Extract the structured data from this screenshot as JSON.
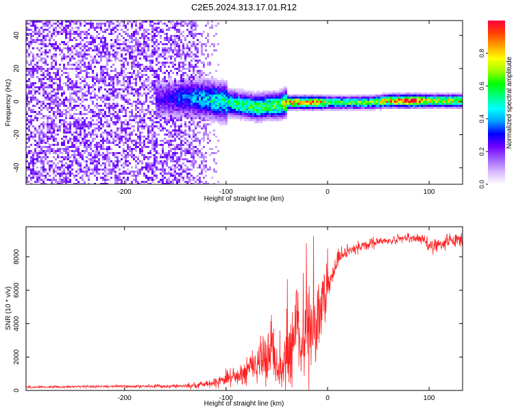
{
  "title": "C2E5.2024.313.17.01.R12",
  "chart_data": [
    {
      "type": "heatmap",
      "xlabel": "Height of straight line (km)",
      "ylabel": "Frequency (Hz)",
      "xlim": [
        -297,
        133
      ],
      "ylim": [
        -50,
        49
      ],
      "xticks": [
        -200,
        -100,
        0,
        100
      ],
      "xtick_labels": [
        "-200",
        "-100",
        "0",
        "100"
      ],
      "yticks": [
        -40,
        -20,
        0,
        20,
        40
      ],
      "ytick_labels": [
        "-40",
        "-20",
        "0",
        "20",
        "40"
      ],
      "colorbar": {
        "label": "Normalized spectral amplitude",
        "range": [
          0,
          1
        ],
        "ticks": [
          0.0,
          0.2,
          0.4,
          0.6,
          0.8
        ],
        "tick_labels": [
          "0.0",
          "0.2",
          "0.4",
          "0.6",
          "0.8"
        ],
        "colors": [
          "#ffffff",
          "#d8b8ff",
          "#a060ff",
          "#7000ff",
          "#0000ff",
          "#00a0ff",
          "#00ffff",
          "#00ff80",
          "#00ff00",
          "#a0ff00",
          "#ffff00",
          "#ffa000",
          "#ff4000",
          "#ff0040"
        ]
      },
      "ridge": {
        "x": [
          -160,
          -140,
          -120,
          -100,
          -80,
          -70,
          -60,
          -50,
          -40,
          -30,
          -20,
          -10,
          0,
          20,
          40,
          60,
          80,
          100,
          120,
          133
        ],
        "y": [
          2,
          3,
          2,
          0,
          -2,
          -3,
          -2,
          -2,
          0,
          0,
          0,
          0,
          0,
          0,
          0,
          1,
          1,
          1,
          1,
          1
        ],
        "amplitude": [
          0.25,
          0.35,
          0.45,
          0.5,
          0.55,
          0.6,
          0.6,
          0.6,
          0.8,
          0.85,
          0.85,
          0.9,
          0.6,
          0.6,
          0.6,
          0.8,
          0.95,
          0.7,
          0.75,
          0.7
        ]
      },
      "background_noise_xlim": [
        -297,
        -105
      ]
    },
    {
      "type": "line",
      "xlabel": "Height of straight line (km)",
      "ylabel": "SNR (10 * v/v)",
      "xlim": [
        -297,
        133
      ],
      "ylim": [
        0,
        9800
      ],
      "xticks": [
        -200,
        -100,
        0,
        100
      ],
      "xtick_labels": [
        "-200",
        "-100",
        "0",
        "100"
      ],
      "yticks": [
        0,
        2000,
        4000,
        6000,
        8000
      ],
      "ytick_labels": [
        "0",
        "2000",
        "4000",
        "6000",
        "8000"
      ],
      "color": "#ff2020",
      "series": [
        {
          "x": [
            -297,
            -260,
            -220,
            -180,
            -150,
            -130,
            -110,
            -100,
            -90,
            -80,
            -70,
            -60,
            -55,
            -50,
            -45,
            -40,
            -35,
            -30,
            -25,
            -20,
            -15,
            -10,
            -5,
            0,
            5,
            10,
            15,
            20,
            30,
            40,
            50,
            60,
            70,
            80,
            90,
            95,
            100,
            110,
            120,
            133
          ],
          "y": [
            200,
            220,
            240,
            250,
            260,
            300,
            500,
            700,
            900,
            1200,
            1700,
            2200,
            2500,
            1500,
            800,
            2200,
            3200,
            3600,
            3000,
            3300,
            4000,
            4500,
            5200,
            6300,
            7000,
            7800,
            8200,
            8300,
            8600,
            8800,
            8900,
            8950,
            9050,
            9100,
            9100,
            9150,
            8600,
            8800,
            9000,
            8850
          ],
          "noise": [
            60,
            60,
            70,
            80,
            90,
            150,
            250,
            400,
            550,
            700,
            900,
            1300,
            1600,
            1400,
            1000,
            1600,
            2000,
            2300,
            2300,
            2300,
            2200,
            2100,
            1600,
            900,
            700,
            500,
            400,
            350,
            300,
            250,
            220,
            200,
            220,
            250,
            250,
            300,
            350,
            400,
            400,
            350
          ]
        }
      ]
    }
  ]
}
